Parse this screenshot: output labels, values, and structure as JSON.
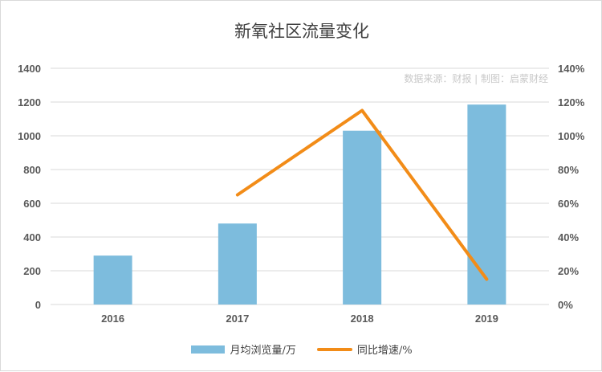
{
  "chart_data": {
    "type": "bar",
    "title": "新氧社区流量变化",
    "source_note": "数据来源：财报 | 制图：启蒙财经",
    "categories": [
      "2016",
      "2017",
      "2018",
      "2019"
    ],
    "series": [
      {
        "name": "月均浏览量/万",
        "type": "bar",
        "axis": "left",
        "values": [
          290,
          480,
          1030,
          1185
        ],
        "color": "#7dbcdd"
      },
      {
        "name": "同比增速/%",
        "type": "line",
        "axis": "right",
        "values": [
          null,
          65,
          115,
          15
        ],
        "color": "#f28c18"
      }
    ],
    "y_left": {
      "min": 0,
      "max": 1400,
      "ticks": [
        "0",
        "200",
        "400",
        "600",
        "800",
        "1000",
        "1200",
        "1400"
      ]
    },
    "y_right": {
      "min": 0,
      "max": 140,
      "ticks": [
        "0%",
        "20%",
        "40%",
        "60%",
        "80%",
        "100%",
        "120%",
        "140%"
      ]
    },
    "grid": true,
    "legend_position": "bottom"
  }
}
